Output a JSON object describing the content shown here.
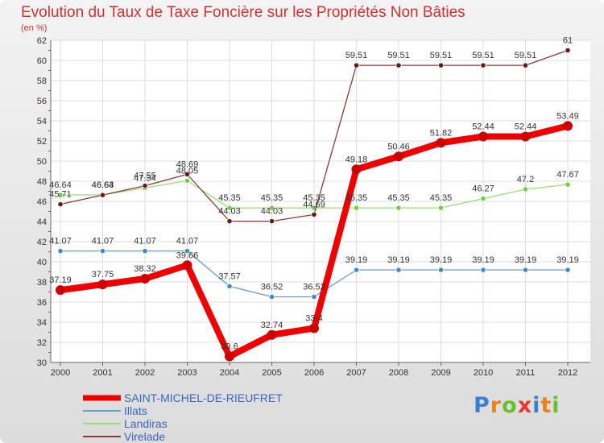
{
  "title": "Evolution du Taux de Taxe Foncière sur les Propriétés Non Bâties",
  "unit": "(en %)",
  "logo": "Proxiti",
  "chart_data": {
    "type": "line",
    "title": "Evolution du Taux de Taxe Foncière sur les Propriétés Non Bâties",
    "ylabel": "(en %)",
    "xlabel": "",
    "ylim": [
      30,
      62
    ],
    "yticks": [
      30,
      32,
      34,
      36,
      38,
      40,
      42,
      44,
      46,
      48,
      50,
      52,
      54,
      56,
      58,
      60,
      62
    ],
    "categories": [
      "2000",
      "2001",
      "2002",
      "2003",
      "2004",
      "2005",
      "2006",
      "2007",
      "2008",
      "2009",
      "2010",
      "2011",
      "2012"
    ],
    "series": [
      {
        "name": "SAINT-MICHEL-DE-RIEUFRET",
        "color": "#ee0000",
        "marker": "#cc0000",
        "thick": true,
        "values": [
          37.19,
          37.75,
          38.32,
          39.66,
          30.6,
          32.74,
          33.4,
          49.18,
          50.46,
          51.82,
          52.44,
          52.44,
          53.49
        ],
        "labels": [
          "37.19",
          "37.75",
          "38.32",
          "39.66",
          "30.6",
          "32.74",
          "33.4",
          "49.18",
          "50.46",
          "51.82",
          "52.44",
          "52.44",
          "53.49"
        ]
      },
      {
        "name": "Illats",
        "color": "#6699cc",
        "marker": "#4488cc",
        "thick": false,
        "values": [
          41.07,
          41.07,
          41.07,
          41.07,
          37.57,
          36.52,
          36.52,
          39.19,
          39.19,
          39.19,
          39.19,
          39.19,
          39.19
        ],
        "labels": [
          "41.07",
          "41.07",
          "41.07",
          "41.07",
          "37.57",
          "36.52",
          "36.52",
          "39.19",
          "39.19",
          "39.19",
          "39.19",
          "39.19",
          "39.19"
        ]
      },
      {
        "name": "Landiras",
        "color": "#99dd77",
        "marker": "#77cc44",
        "thick": false,
        "values": [
          46.64,
          46.64,
          47.34,
          48.05,
          45.35,
          45.35,
          45.35,
          45.35,
          45.35,
          45.35,
          46.27,
          47.2,
          47.67
        ],
        "labels": [
          "46.64",
          "46.64",
          "47.34",
          "48.05",
          "45.35",
          "45.35",
          "45.35",
          "45.35",
          "45.35",
          "45.35",
          "46.27",
          "47.2",
          "47.67"
        ]
      },
      {
        "name": "Virelade",
        "color": "#8b3a3a",
        "marker": "#661a1a",
        "thick": false,
        "values": [
          45.71,
          46.63,
          47.55,
          48.69,
          44.03,
          44.03,
          44.69,
          59.51,
          59.51,
          59.51,
          59.51,
          59.51,
          61
        ],
        "labels": [
          "45.71",
          "46.63",
          "47.55",
          "48.69",
          "44.03",
          "44.03",
          "44.69",
          "59.51",
          "59.51",
          "59.51",
          "59.51",
          "59.51",
          "61"
        ]
      }
    ]
  }
}
